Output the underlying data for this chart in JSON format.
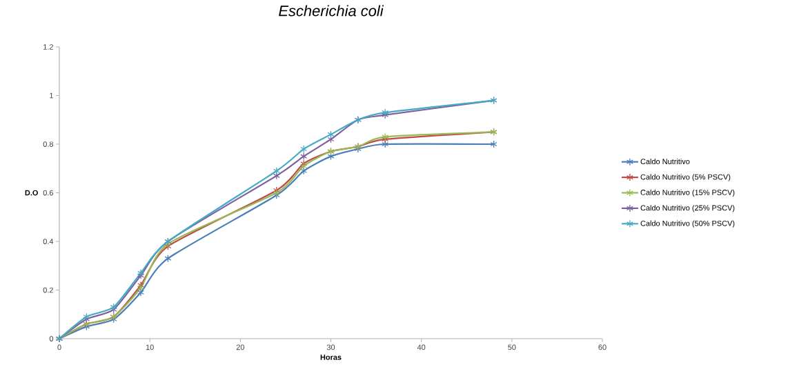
{
  "chart_data": {
    "type": "line",
    "title": "Escherichia coli",
    "xlabel": "Horas",
    "ylabel": "D.O",
    "x": [
      0,
      3,
      6,
      9,
      12,
      24,
      27,
      30,
      33,
      36,
      48
    ],
    "series": [
      {
        "name": "Caldo Nutritivo",
        "color": "#4a7ebb",
        "values": [
          0,
          0.05,
          0.08,
          0.19,
          0.33,
          0.59,
          0.69,
          0.75,
          0.78,
          0.8,
          0.8
        ]
      },
      {
        "name": "Caldo Nutritivo (5% PSCV)",
        "color": "#be4b48",
        "values": [
          0,
          0.06,
          0.09,
          0.22,
          0.38,
          0.61,
          0.72,
          0.77,
          0.79,
          0.82,
          0.85
        ]
      },
      {
        "name": "Caldo Nutritivo (15% PSCV)",
        "color": "#98b954",
        "values": [
          0,
          0.06,
          0.09,
          0.21,
          0.39,
          0.6,
          0.71,
          0.77,
          0.79,
          0.83,
          0.85
        ]
      },
      {
        "name": "Caldo Nutritivo (25% PSCV)",
        "color": "#7d60a0",
        "values": [
          0,
          0.08,
          0.12,
          0.26,
          0.4,
          0.67,
          0.75,
          0.82,
          0.9,
          0.92,
          0.98
        ]
      },
      {
        "name": "Caldo Nutritivo (50% PSCV)",
        "color": "#46aac5",
        "values": [
          0,
          0.09,
          0.13,
          0.27,
          0.4,
          0.69,
          0.78,
          0.84,
          0.9,
          0.93,
          0.98
        ]
      }
    ],
    "xlim": [
      0,
      60
    ],
    "ylim": [
      0,
      1.2
    ],
    "xticks": [
      0,
      10,
      20,
      30,
      40,
      50,
      60
    ],
    "yticks": [
      0,
      0.2,
      0.4,
      0.6,
      0.8,
      1,
      1.2
    ],
    "grid": false,
    "legend": "right",
    "marker": "cross",
    "line_style": "solid"
  }
}
